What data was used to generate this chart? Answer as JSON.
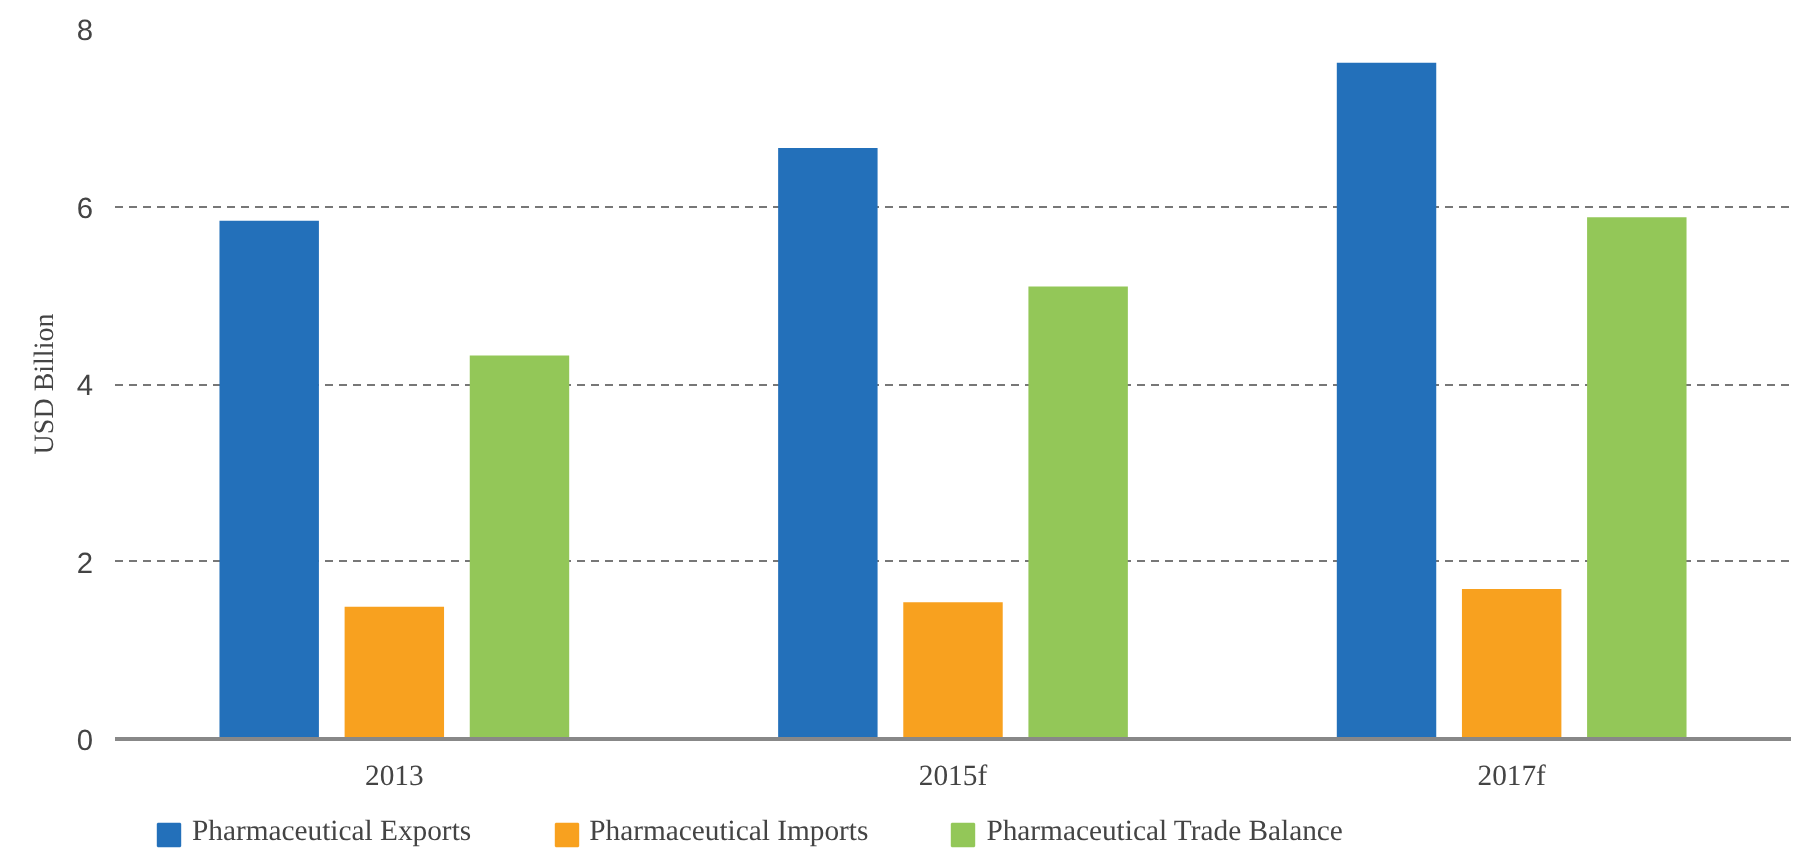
{
  "chart_data": {
    "type": "bar",
    "ylabel": "USD Billion",
    "categories": [
      "2013",
      "2015f",
      "2017f"
    ],
    "series": [
      {
        "name": "Pharmaceutical Exports",
        "color": "#2370ba",
        "values": [
          5.84,
          6.66,
          7.62
        ]
      },
      {
        "name": "Pharmaceutical Imports",
        "color": "#f8a11f",
        "values": [
          1.49,
          1.54,
          1.69
        ]
      },
      {
        "name": "Pharmaceutical Trade Balance",
        "color": "#93c758",
        "values": [
          4.32,
          5.1,
          5.88
        ]
      }
    ],
    "ylim": [
      0,
      8
    ],
    "yticks": [
      0,
      2,
      4,
      6,
      8
    ],
    "grid": "y",
    "legend": "bottom"
  }
}
